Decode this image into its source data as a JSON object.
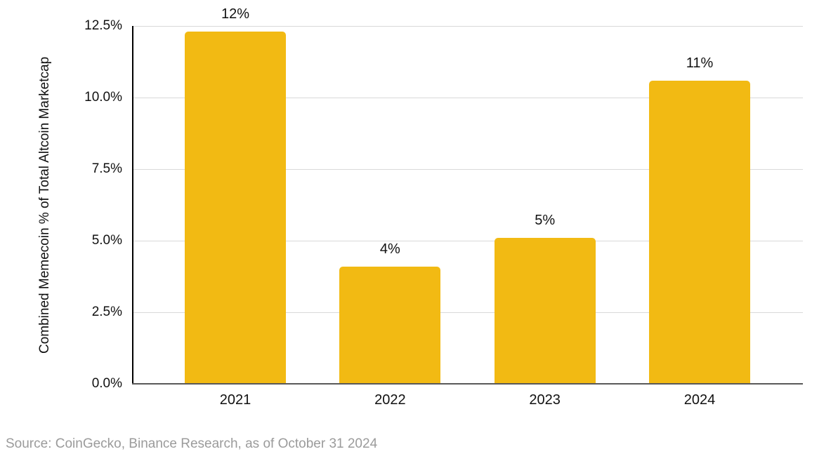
{
  "chart_data": {
    "type": "bar",
    "title": "",
    "xlabel": "",
    "ylabel": "Combined Memecoin % of Total Altcoin Marketcap",
    "categories": [
      "2021",
      "2022",
      "2023",
      "2024"
    ],
    "values": [
      12.3,
      4.1,
      5.1,
      10.6
    ],
    "bar_labels": [
      "12%",
      "4%",
      "5%",
      "11%"
    ],
    "ylim": [
      0,
      12.5
    ],
    "yticks": [
      {
        "value": 12.5,
        "label": "12.5%"
      },
      {
        "value": 10.0,
        "label": "10.0%"
      },
      {
        "value": 7.5,
        "label": "7.5%"
      },
      {
        "value": 5.0,
        "label": "5.0%"
      },
      {
        "value": 2.5,
        "label": "2.5%"
      },
      {
        "value": 0.0,
        "label": "0.0%"
      }
    ],
    "grid": "horizontal",
    "legend": "none",
    "colors": {
      "bar": "#F2BA13",
      "gridline": "#D9D9D9",
      "y_axis_line": "#000000",
      "x_axis_line": "#595959",
      "text": "#111111",
      "source_text": "#9B9B9B"
    }
  },
  "source": {
    "text": "Source: CoinGecko, Binance Research, as of October 31 2024"
  }
}
